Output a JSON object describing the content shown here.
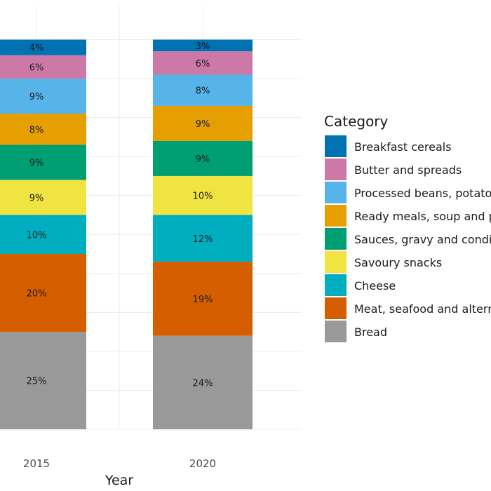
{
  "chart_data": {
    "type": "bar",
    "stacked": true,
    "xlabel": "Year",
    "ylabel": "",
    "categories": [
      "2015",
      "2020"
    ],
    "ylim": [
      0,
      100
    ],
    "grid": true,
    "legend": {
      "title": "Category",
      "placement": "right",
      "order": [
        "Breakfast cereals",
        "Butter and spreads",
        "Processed beans, potato",
        "Ready meals, soup and p",
        "Sauces, gravy and condi",
        "Savoury snacks",
        "Cheese",
        "Meat, seafood and altern",
        "Bread"
      ]
    },
    "series": [
      {
        "name": "Bread",
        "color": "#999999",
        "values": [
          25,
          24
        ],
        "labels": [
          "25%",
          "24%"
        ]
      },
      {
        "name": "Meat, seafood and altern",
        "color": "#D55E00",
        "values": [
          20,
          19
        ],
        "labels": [
          "20%",
          "19%"
        ]
      },
      {
        "name": "Cheese",
        "color": "#00AEC0",
        "values": [
          10,
          12
        ],
        "labels": [
          "10%",
          "12%"
        ]
      },
      {
        "name": "Savoury snacks",
        "color": "#F0E442",
        "values": [
          9,
          10
        ],
        "labels": [
          "9%",
          "10%"
        ]
      },
      {
        "name": "Sauces, gravy and condi",
        "color": "#009E73",
        "values": [
          9,
          9
        ],
        "labels": [
          "9%",
          "9%"
        ]
      },
      {
        "name": "Ready meals, soup and p",
        "color": "#E69F00",
        "values": [
          8,
          9
        ],
        "labels": [
          "8%",
          "9%"
        ]
      },
      {
        "name": "Processed beans, potato",
        "color": "#56B4E9",
        "values": [
          9,
          8
        ],
        "labels": [
          "9%",
          "8%"
        ]
      },
      {
        "name": "Butter and spreads",
        "color": "#CC79A7",
        "values": [
          6,
          6
        ],
        "labels": [
          "6%",
          "6%"
        ]
      },
      {
        "name": "Breakfast cereals",
        "color": "#0072B2",
        "values": [
          4,
          3
        ],
        "labels": [
          "4%",
          "3%"
        ]
      }
    ]
  }
}
